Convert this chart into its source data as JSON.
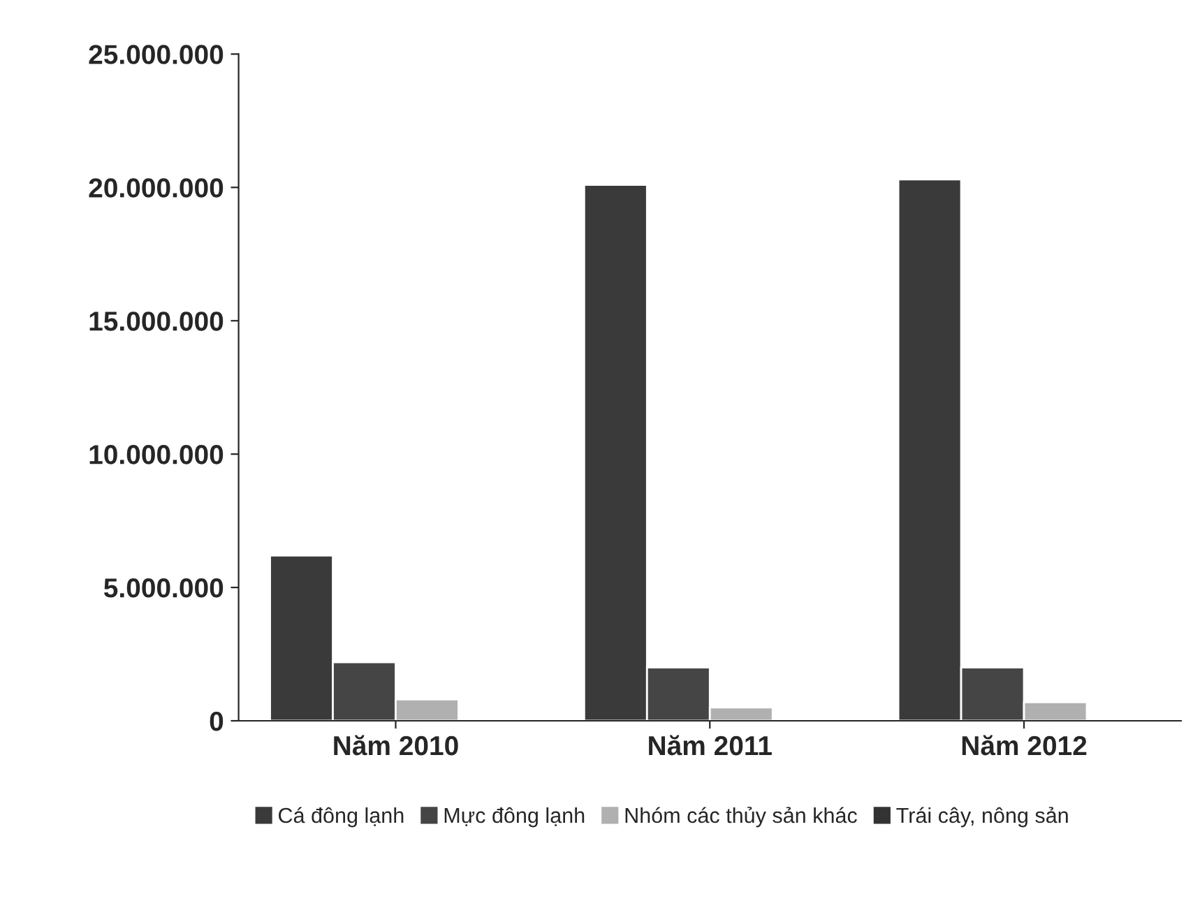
{
  "chart_data": {
    "type": "bar",
    "categories": [
      "Năm 2010",
      "Năm 2011",
      "Năm 2012"
    ],
    "series": [
      {
        "name": "Cá đông lạnh",
        "color": "#3a3a3a",
        "values": [
          6200000,
          20100000,
          20300000
        ]
      },
      {
        "name": "Mực đông lạnh",
        "color": "#454545",
        "values": [
          2200000,
          2000000,
          2000000
        ]
      },
      {
        "name": "Nhóm các thủy sản khác",
        "color": "#b0b0b0",
        "values": [
          800000,
          500000,
          700000
        ]
      },
      {
        "name": "Trái cây, nông sản",
        "color": "#333333",
        "values": [
          null,
          null,
          null
        ]
      }
    ],
    "ylim": [
      0,
      25000000
    ],
    "yticks": [
      {
        "value": 0,
        "label": "0"
      },
      {
        "value": 5000000,
        "label": "5.000.000"
      },
      {
        "value": 10000000,
        "label": "10.000.000"
      },
      {
        "value": 15000000,
        "label": "15.000.000"
      },
      {
        "value": 20000000,
        "label": "20.000.000"
      },
      {
        "value": 25000000,
        "label": "25.000.000"
      }
    ],
    "grid": false,
    "legend": "bottom"
  }
}
